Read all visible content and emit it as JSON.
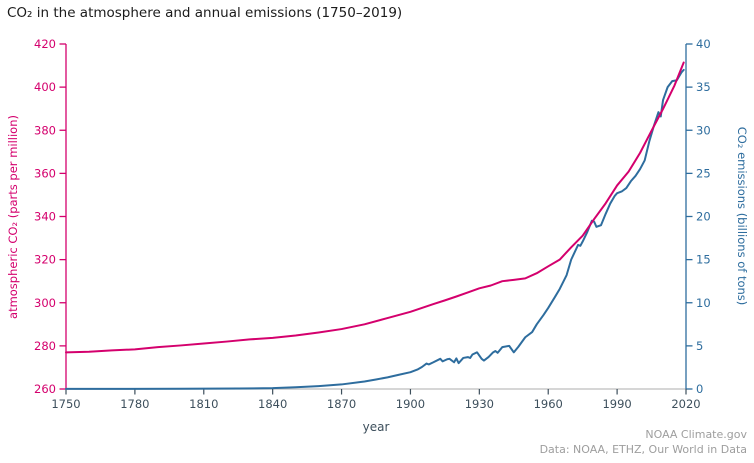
{
  "title": "CO₂ in the atmosphere and annual emissions (1750–2019)",
  "credits": {
    "line1": "NOAA Climate.gov",
    "line2": "Data: NOAA, ETHZ, Our World in Data"
  },
  "colors": {
    "atmospheric": "#d4006d",
    "emissions": "#2e6d9e",
    "x_text": "#3d4f5c",
    "axis_line": "#bdbdbd",
    "credit_gray": "#9e9e9e",
    "title_text": "#1b1b1b"
  },
  "chart_data": {
    "type": "line",
    "title": "CO₂ in the atmosphere and annual emissions (1750–2019)",
    "xlabel": "year",
    "x_axis": {
      "min": 1750,
      "max": 2020,
      "tick_step": 30
    },
    "left_axis": {
      "label": "atmospheric CO₂ (parts per million)",
      "min": 260,
      "max": 420,
      "tick_step": 20
    },
    "right_axis": {
      "label": "CO₂ emissions (billions of tons)",
      "min": 0,
      "max": 40,
      "tick_step": 5
    },
    "legend": "none",
    "grid": false,
    "series": [
      {
        "name": "atmospheric CO₂ (parts per million)",
        "axis": "left",
        "color": "#d4006d",
        "points": [
          [
            1750,
            277.0
          ],
          [
            1760,
            277.3
          ],
          [
            1770,
            277.9
          ],
          [
            1780,
            278.4
          ],
          [
            1790,
            279.4
          ],
          [
            1800,
            280.2
          ],
          [
            1810,
            281.1
          ],
          [
            1820,
            282.0
          ],
          [
            1830,
            283.0
          ],
          [
            1840,
            283.7
          ],
          [
            1850,
            284.8
          ],
          [
            1860,
            286.2
          ],
          [
            1870,
            287.8
          ],
          [
            1880,
            290.0
          ],
          [
            1890,
            292.9
          ],
          [
            1900,
            295.8
          ],
          [
            1905,
            297.6
          ],
          [
            1910,
            299.4
          ],
          [
            1915,
            301.1
          ],
          [
            1920,
            302.9
          ],
          [
            1925,
            304.8
          ],
          [
            1930,
            306.7
          ],
          [
            1935,
            308.0
          ],
          [
            1940,
            310.0
          ],
          [
            1945,
            310.6
          ],
          [
            1950,
            311.3
          ],
          [
            1955,
            313.7
          ],
          [
            1960,
            316.9
          ],
          [
            1965,
            320.0
          ],
          [
            1970,
            325.7
          ],
          [
            1975,
            331.1
          ],
          [
            1980,
            338.8
          ],
          [
            1985,
            346.1
          ],
          [
            1990,
            354.4
          ],
          [
            1995,
            360.8
          ],
          [
            2000,
            369.5
          ],
          [
            2005,
            379.8
          ],
          [
            2010,
            389.9
          ],
          [
            2015,
            400.8
          ],
          [
            2019,
            411.4
          ]
        ]
      },
      {
        "name": "CO₂ emissions (billions of tons)",
        "axis": "right",
        "color": "#2e6d9e",
        "points": [
          [
            1750,
            0.01
          ],
          [
            1775,
            0.02
          ],
          [
            1800,
            0.03
          ],
          [
            1825,
            0.06
          ],
          [
            1840,
            0.1
          ],
          [
            1850,
            0.2
          ],
          [
            1860,
            0.34
          ],
          [
            1870,
            0.53
          ],
          [
            1880,
            0.87
          ],
          [
            1885,
            1.1
          ],
          [
            1890,
            1.35
          ],
          [
            1895,
            1.65
          ],
          [
            1900,
            1.95
          ],
          [
            1903,
            2.25
          ],
          [
            1905,
            2.55
          ],
          [
            1907,
            2.95
          ],
          [
            1908,
            2.85
          ],
          [
            1910,
            3.1
          ],
          [
            1913,
            3.5
          ],
          [
            1914,
            3.2
          ],
          [
            1916,
            3.45
          ],
          [
            1917,
            3.5
          ],
          [
            1919,
            3.1
          ],
          [
            1920,
            3.55
          ],
          [
            1921,
            3.0
          ],
          [
            1923,
            3.6
          ],
          [
            1925,
            3.7
          ],
          [
            1926,
            3.6
          ],
          [
            1927,
            4.0
          ],
          [
            1929,
            4.25
          ],
          [
            1931,
            3.5
          ],
          [
            1932,
            3.3
          ],
          [
            1934,
            3.7
          ],
          [
            1936,
            4.25
          ],
          [
            1937,
            4.4
          ],
          [
            1938,
            4.2
          ],
          [
            1940,
            4.85
          ],
          [
            1943,
            5.0
          ],
          [
            1945,
            4.25
          ],
          [
            1947,
            4.9
          ],
          [
            1950,
            6.0
          ],
          [
            1953,
            6.6
          ],
          [
            1955,
            7.5
          ],
          [
            1958,
            8.6
          ],
          [
            1960,
            9.4
          ],
          [
            1963,
            10.7
          ],
          [
            1965,
            11.6
          ],
          [
            1968,
            13.2
          ],
          [
            1970,
            15.0
          ],
          [
            1973,
            16.7
          ],
          [
            1974,
            16.6
          ],
          [
            1975,
            17.1
          ],
          [
            1977,
            18.2
          ],
          [
            1979,
            19.5
          ],
          [
            1980,
            19.4
          ],
          [
            1981,
            18.8
          ],
          [
            1983,
            19.0
          ],
          [
            1985,
            20.3
          ],
          [
            1987,
            21.5
          ],
          [
            1989,
            22.4
          ],
          [
            1990,
            22.7
          ],
          [
            1992,
            22.9
          ],
          [
            1994,
            23.3
          ],
          [
            1996,
            24.1
          ],
          [
            1998,
            24.7
          ],
          [
            2000,
            25.5
          ],
          [
            2002,
            26.5
          ],
          [
            2004,
            28.7
          ],
          [
            2006,
            30.5
          ],
          [
            2008,
            32.1
          ],
          [
            2009,
            31.6
          ],
          [
            2010,
            33.5
          ],
          [
            2012,
            35.0
          ],
          [
            2014,
            35.7
          ],
          [
            2016,
            35.8
          ],
          [
            2018,
            36.7
          ],
          [
            2019,
            37.0
          ]
        ]
      }
    ]
  }
}
